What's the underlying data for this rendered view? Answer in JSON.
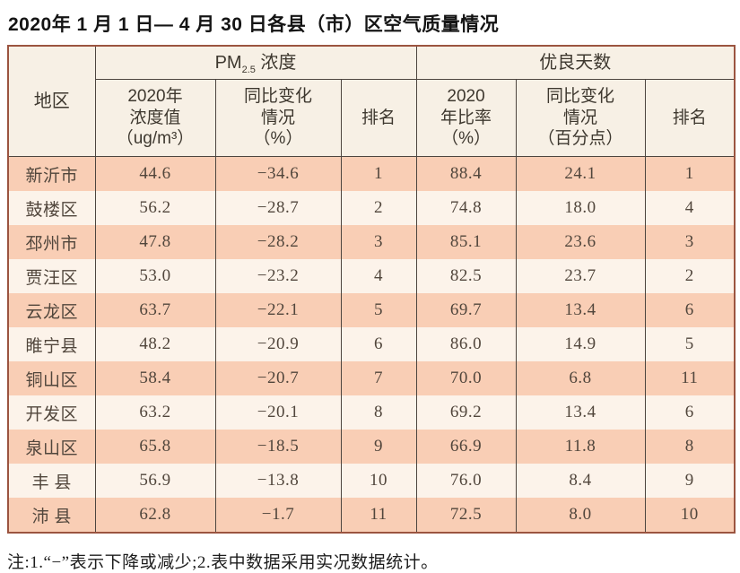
{
  "title": "2020年 1 月 1 日— 4 月 30 日各县（市）区空气质量情况",
  "table": {
    "region_header": "地区",
    "pm_group": {
      "prefix": "PM",
      "sub": "2.5",
      "suffix": " 浓度"
    },
    "good_group": "优良天数",
    "sub_headers": {
      "pm_value": "2020年\n浓度值\n（ug/m³）",
      "pm_change": "同比变化\n情况\n（%）",
      "pm_rank": "排名",
      "good_ratio": "2020\n年比率\n（%）",
      "good_change": "同比变化\n情况\n（百分点）",
      "good_rank": "排名"
    },
    "rows": [
      {
        "region": "新沂市",
        "pm_value": "44.6",
        "pm_change": "−34.6",
        "pm_rank": "1",
        "good_ratio": "88.4",
        "good_change": "24.1",
        "good_rank": "1"
      },
      {
        "region": "鼓楼区",
        "pm_value": "56.2",
        "pm_change": "−28.7",
        "pm_rank": "2",
        "good_ratio": "74.8",
        "good_change": "18.0",
        "good_rank": "4"
      },
      {
        "region": "邳州市",
        "pm_value": "47.8",
        "pm_change": "−28.2",
        "pm_rank": "3",
        "good_ratio": "85.1",
        "good_change": "23.6",
        "good_rank": "3"
      },
      {
        "region": "贾汪区",
        "pm_value": "53.0",
        "pm_change": "−23.2",
        "pm_rank": "4",
        "good_ratio": "82.5",
        "good_change": "23.7",
        "good_rank": "2"
      },
      {
        "region": "云龙区",
        "pm_value": "63.7",
        "pm_change": "−22.1",
        "pm_rank": "5",
        "good_ratio": "69.7",
        "good_change": "13.4",
        "good_rank": "6"
      },
      {
        "region": "睢宁县",
        "pm_value": "48.2",
        "pm_change": "−20.9",
        "pm_rank": "6",
        "good_ratio": "86.0",
        "good_change": "14.9",
        "good_rank": "5"
      },
      {
        "region": "铜山区",
        "pm_value": "58.4",
        "pm_change": "−20.7",
        "pm_rank": "7",
        "good_ratio": "70.0",
        "good_change": "6.8",
        "good_rank": "11"
      },
      {
        "region": "开发区",
        "pm_value": "63.2",
        "pm_change": "−20.1",
        "pm_rank": "8",
        "good_ratio": "69.2",
        "good_change": "13.4",
        "good_rank": "6"
      },
      {
        "region": "泉山区",
        "pm_value": "65.8",
        "pm_change": "−18.5",
        "pm_rank": "9",
        "good_ratio": "66.9",
        "good_change": "11.8",
        "good_rank": "8"
      },
      {
        "region": "丰 县",
        "pm_value": "56.9",
        "pm_change": "−13.8",
        "pm_rank": "10",
        "good_ratio": "76.0",
        "good_change": "8.4",
        "good_rank": "9"
      },
      {
        "region": "沛 县",
        "pm_value": "62.8",
        "pm_change": "−1.7",
        "pm_rank": "11",
        "good_ratio": "72.5",
        "good_change": "8.0",
        "good_rank": "10"
      }
    ]
  },
  "footnote": "注:1.“−”表示下降或减少;2.表中数据采用实况数据统计。",
  "colors": {
    "outer_border": "#9b5440",
    "grid_line": "#4d453f",
    "header_bg": "#f7f0e5",
    "row_odd_bg": "#f9ceb5",
    "row_even_bg": "#fcf3ea",
    "data_text": "#51463c"
  }
}
